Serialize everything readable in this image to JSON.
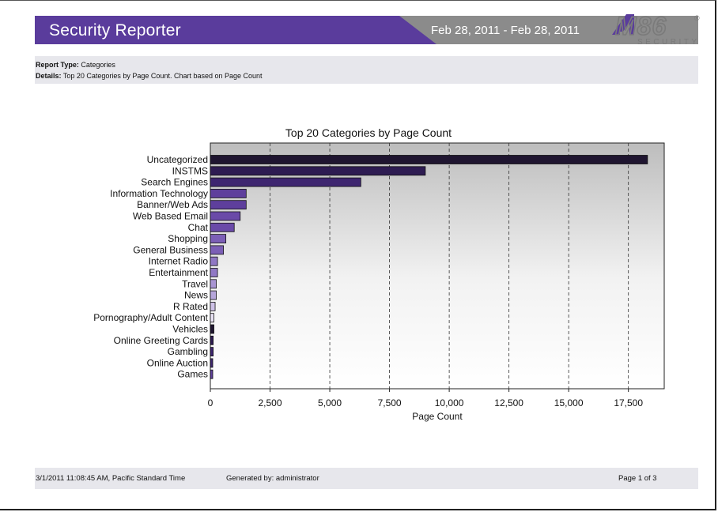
{
  "header": {
    "title": "Security Reporter",
    "date_range": "Feb 28, 2011 - Feb 28, 2011",
    "logo_main": "M86",
    "logo_sub": "SECURITY",
    "logo_mark": "®"
  },
  "info": {
    "report_type_label": "Report Type:",
    "report_type_value": "Categories",
    "details_label": "Details:",
    "details_value": "Top 20 Categories by Page Count. Chart based on Page Count"
  },
  "chart_data": {
    "type": "bar",
    "orientation": "horizontal",
    "title": "Top 20 Categories by Page Count",
    "xlabel": "Page Count",
    "ylabel": "",
    "xlim": [
      0,
      19000
    ],
    "x_ticks": [
      0,
      2500,
      5000,
      7500,
      10000,
      12500,
      15000,
      17500
    ],
    "x_tick_labels": [
      "0",
      "2,500",
      "5,000",
      "7,500",
      "10,000",
      "12,500",
      "15,000",
      "17,500"
    ],
    "grid": "vertical dashed",
    "categories": [
      "Uncategorized",
      "INSTMS",
      "Search Engines",
      "Information Technology",
      "Banner/Web Ads",
      "Web Based Email",
      "Chat",
      "Shopping",
      "General Business",
      "Internet Radio",
      "Entertainment",
      "Travel",
      "News",
      "R Rated",
      "Pornography/Adult Content",
      "Vehicles",
      "Online Greeting Cards",
      "Gambling",
      "Online Auction",
      "Games"
    ],
    "values": [
      18300,
      9000,
      6300,
      1500,
      1500,
      1250,
      1000,
      650,
      550,
      300,
      300,
      250,
      250,
      200,
      150,
      150,
      120,
      120,
      100,
      100
    ],
    "colors": [
      "#1f1530",
      "#2e1c52",
      "#3e2670",
      "#5e3f9c",
      "#5e3f9c",
      "#6a4aa8",
      "#6a4aa8",
      "#7c5fb6",
      "#7c5fb6",
      "#9078c4",
      "#9078c4",
      "#a894d2",
      "#b5a5da",
      "#cdc0e6",
      "#e8e2f4",
      "#1f1530",
      "#2e1c52",
      "#3e2670",
      "#3e2670",
      "#5e3f9c"
    ]
  },
  "footer": {
    "timestamp": "3/1/2011 11:08:45 AM, Pacific Standard Time",
    "generated_by": "Generated by: administrator",
    "page": "Page 1 of 3"
  }
}
